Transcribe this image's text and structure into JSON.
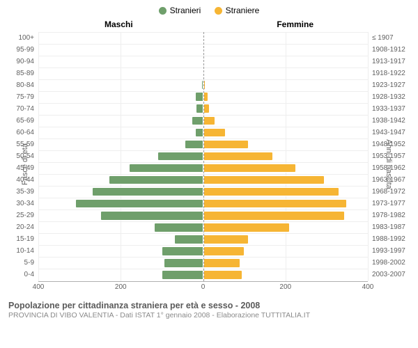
{
  "legend": {
    "male": {
      "label": "Stranieri",
      "color": "#6f9f6b"
    },
    "female": {
      "label": "Straniere",
      "color": "#f6b534"
    }
  },
  "headers": {
    "male": "Maschi",
    "female": "Femmine"
  },
  "axis": {
    "left_label": "Fasce di età",
    "right_label": "Anni di nascita",
    "max": 400,
    "ticks": [
      400,
      200,
      0,
      200,
      400
    ],
    "grid_color": "#eeeeee",
    "center_line_color": "#999999",
    "tick_fontsize": 10,
    "label_fontsize": 11
  },
  "colors": {
    "male_bar": "#6f9f6b",
    "female_bar": "#f6b534",
    "background": "#ffffff",
    "text": "#606060"
  },
  "footer": {
    "title": "Popolazione per cittadinanza straniera per età e sesso - 2008",
    "subtitle": "PROVINCIA DI VIBO VALENTIA - Dati ISTAT 1° gennaio 2008 - Elaborazione TUTTITALIA.IT"
  },
  "rows": [
    {
      "age": "100+",
      "birth": "≤ 1907",
      "m": 0,
      "f": 0
    },
    {
      "age": "95-99",
      "birth": "1908-1912",
      "m": 0,
      "f": 0
    },
    {
      "age": "90-94",
      "birth": "1913-1917",
      "m": 0,
      "f": 0
    },
    {
      "age": "85-89",
      "birth": "1918-1922",
      "m": 0,
      "f": 3
    },
    {
      "age": "80-84",
      "birth": "1923-1927",
      "m": 4,
      "f": 6
    },
    {
      "age": "75-79",
      "birth": "1928-1932",
      "m": 20,
      "f": 12
    },
    {
      "age": "70-74",
      "birth": "1933-1937",
      "m": 18,
      "f": 16
    },
    {
      "age": "65-69",
      "birth": "1938-1942",
      "m": 28,
      "f": 30
    },
    {
      "age": "60-64",
      "birth": "1943-1947",
      "m": 20,
      "f": 55
    },
    {
      "age": "55-59",
      "birth": "1948-1952",
      "m": 45,
      "f": 110
    },
    {
      "age": "50-54",
      "birth": "1953-1957",
      "m": 110,
      "f": 170
    },
    {
      "age": "45-49",
      "birth": "1958-1962",
      "m": 180,
      "f": 225
    },
    {
      "age": "40-44",
      "birth": "1963-1967",
      "m": 230,
      "f": 295
    },
    {
      "age": "35-39",
      "birth": "1968-1972",
      "m": 270,
      "f": 330
    },
    {
      "age": "30-34",
      "birth": "1973-1977",
      "m": 310,
      "f": 350
    },
    {
      "age": "25-29",
      "birth": "1978-1982",
      "m": 250,
      "f": 345
    },
    {
      "age": "20-24",
      "birth": "1983-1987",
      "m": 120,
      "f": 210
    },
    {
      "age": "15-19",
      "birth": "1988-1992",
      "m": 70,
      "f": 110
    },
    {
      "age": "10-14",
      "birth": "1993-1997",
      "m": 100,
      "f": 100
    },
    {
      "age": "5-9",
      "birth": "1998-2002",
      "m": 95,
      "f": 90
    },
    {
      "age": "0-4",
      "birth": "2003-2007",
      "m": 100,
      "f": 95
    }
  ]
}
